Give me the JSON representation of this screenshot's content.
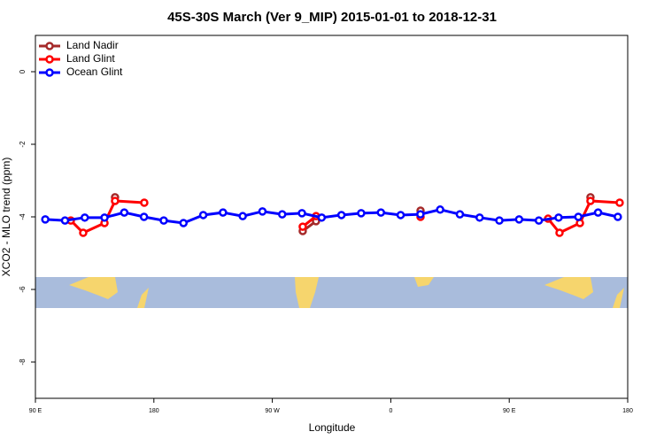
{
  "chart_data": {
    "type": "line",
    "title": "45S-30S March (Ver 9_MIP)   2015-01-01 to 2018-12-31",
    "x_label": "Longitude",
    "y_label": "XCO2 - MLO trend (ppm)",
    "xlim": [
      90,
      540
    ],
    "xticks": [
      {
        "value": 90,
        "label": "90 E"
      },
      {
        "value": 180,
        "label": "180"
      },
      {
        "value": 270,
        "label": "90 W"
      },
      {
        "value": 360,
        "label": "0"
      },
      {
        "value": 450,
        "label": "90 E"
      },
      {
        "value": 540,
        "label": "180"
      }
    ],
    "ylim": [
      -9,
      1
    ],
    "yticks": [
      0,
      -2,
      -4,
      -6,
      -8
    ],
    "legend": "top-left",
    "series": [
      {
        "name": "Land Nadir",
        "color": "#a52a2a",
        "x": [
          150.5,
          null,
          293.1,
          303.2,
          null,
          382.6,
          null,
          511.7
        ],
        "values": [
          -3.46,
          null,
          -4.39,
          -4.12,
          null,
          -3.83,
          null,
          -3.46
        ]
      },
      {
        "name": "Land Glint",
        "color": "#ff0000",
        "x": [
          116.9,
          126.3,
          142.5,
          150.5,
          172.7,
          null,
          293.1,
          303.2,
          null,
          382.6,
          null,
          479.5,
          488.2,
          503.7,
          511.7,
          533.9
        ],
        "values": [
          -4.1,
          -4.44,
          -4.17,
          -3.56,
          -3.61,
          null,
          -4.27,
          -3.98,
          null,
          -4.0,
          null,
          -4.05,
          -4.44,
          -4.17,
          -3.56,
          -3.61
        ]
      },
      {
        "name": "Ocean Glint",
        "color": "#0000ff",
        "x": [
          97.5,
          112.5,
          127.5,
          142.5,
          157.5,
          172.5,
          187.5,
          202.5,
          217.5,
          232.5,
          247.5,
          262.5,
          277.5,
          292.5,
          307.5,
          322.5,
          337.5,
          352.5,
          367.5,
          382.5,
          397.5,
          412.5,
          427.5,
          442.5,
          457.5,
          472.5,
          487.5,
          502.5,
          517.5,
          532.5
        ],
        "values": [
          -4.07,
          -4.1,
          -4.02,
          -4.02,
          -3.88,
          -4.0,
          -4.1,
          -4.17,
          -3.95,
          -3.88,
          -3.98,
          -3.85,
          -3.93,
          -3.9,
          -4.02,
          -3.95,
          -3.9,
          -3.88,
          -3.95,
          -3.93,
          -3.8,
          -3.93,
          -4.02,
          -4.1,
          -4.07,
          -4.1,
          -4.02,
          -4.0,
          -3.88,
          -4.0
        ]
      }
    ]
  }
}
